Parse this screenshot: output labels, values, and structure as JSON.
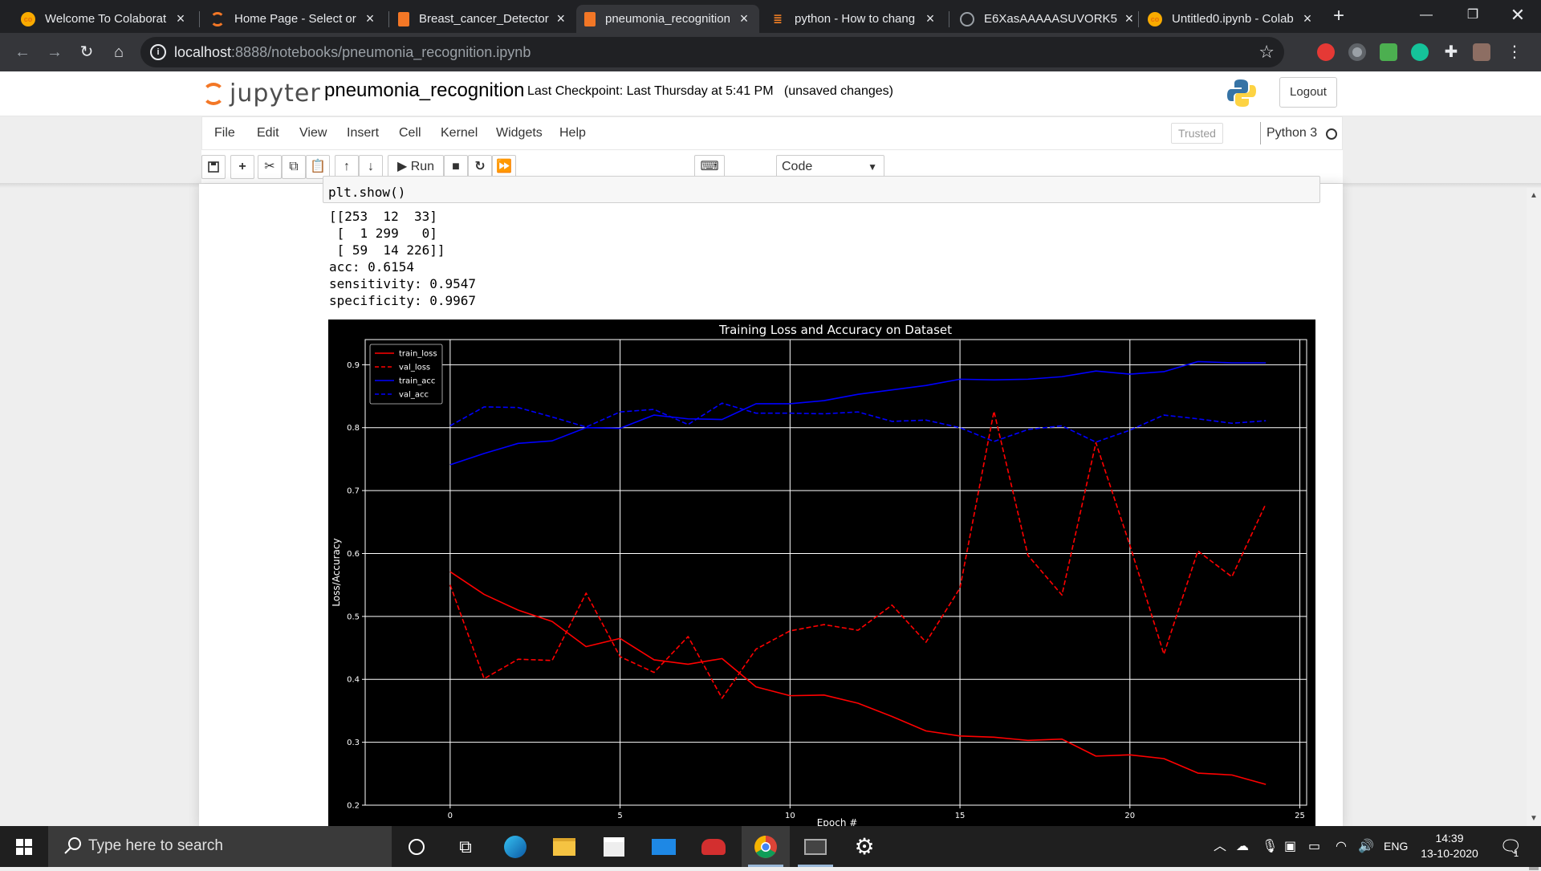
{
  "browser": {
    "tabs": [
      {
        "title": "Welcome To Colaborat",
        "icon": "colab-icon",
        "active": false
      },
      {
        "title": "Home Page - Select or",
        "icon": "jupyter-icon",
        "active": false
      },
      {
        "title": "Breast_cancer_Detector",
        "icon": "notebook-icon",
        "active": false
      },
      {
        "title": "pneumonia_recognition",
        "icon": "notebook-icon",
        "active": true
      },
      {
        "title": "python - How to chang",
        "icon": "stackoverflow-icon",
        "active": false
      },
      {
        "title": "E6XasAAAAASUVORK5",
        "icon": "globe-icon",
        "active": false
      },
      {
        "title": "Untitled0.ipynb - Colab",
        "icon": "colab-icon",
        "active": false
      }
    ],
    "url_host": "localhost",
    "url_rest": ":8888/notebooks/pneumonia_recognition.ipynb"
  },
  "jupyter": {
    "logo_text": "jupyter",
    "notebook_name": "pneumonia_recognition",
    "checkpoint": "Last Checkpoint: Last Thursday at 5:41 PM",
    "unsaved": "(unsaved changes)",
    "logout_label": "Logout",
    "menu": [
      "File",
      "Edit",
      "View",
      "Insert",
      "Cell",
      "Kernel",
      "Widgets",
      "Help"
    ],
    "trusted_label": "Trusted",
    "kernel_name": "Python 3",
    "run_label": "Run",
    "cell_type": "Code"
  },
  "cell": {
    "code_tail": "plt.show()",
    "output_text": "[[253  12  33]\n [  1 299   0]\n [ 59  14 226]]\nacc: 0.6154\nsensitivity: 0.9547\nspecificity: 0.9967"
  },
  "chart_data": {
    "type": "line",
    "title": "Training Loss and Accuracy on Dataset",
    "xlabel": "Epoch #",
    "ylabel": "Loss/Accuracy",
    "xlim": [
      -2.5,
      25.2
    ],
    "ylim": [
      0.2,
      0.94
    ],
    "xticks": [
      0,
      5,
      10,
      15,
      20,
      25
    ],
    "yticks": [
      0.2,
      0.3,
      0.4,
      0.5,
      0.6,
      0.7,
      0.8,
      0.9
    ],
    "grid": true,
    "legend_position": "upper-left",
    "background": "#000000",
    "x": [
      0,
      1,
      2,
      3,
      4,
      5,
      6,
      7,
      8,
      9,
      10,
      11,
      12,
      13,
      14,
      15,
      16,
      17,
      18,
      19,
      20,
      21,
      22,
      23,
      24
    ],
    "series": [
      {
        "name": "train_loss",
        "color": "#ff0000",
        "style": "solid",
        "values": [
          0.571,
          0.535,
          0.51,
          0.492,
          0.452,
          0.465,
          0.431,
          0.424,
          0.433,
          0.388,
          0.374,
          0.375,
          0.362,
          0.341,
          0.318,
          0.31,
          0.308,
          0.303,
          0.305,
          0.278,
          0.28,
          0.274,
          0.251,
          0.248,
          0.233
        ]
      },
      {
        "name": "val_loss",
        "color": "#ff0000",
        "style": "dashed",
        "values": [
          0.55,
          0.401,
          0.432,
          0.43,
          0.537,
          0.436,
          0.411,
          0.468,
          0.37,
          0.448,
          0.477,
          0.487,
          0.478,
          0.518,
          0.459,
          0.545,
          0.826,
          0.597,
          0.534,
          0.776,
          0.613,
          0.44,
          0.604,
          0.563,
          0.679
        ]
      },
      {
        "name": "train_acc",
        "color": "#0000ff",
        "style": "solid",
        "values": [
          0.741,
          0.759,
          0.775,
          0.779,
          0.8,
          0.799,
          0.82,
          0.814,
          0.813,
          0.838,
          0.838,
          0.843,
          0.853,
          0.86,
          0.867,
          0.877,
          0.876,
          0.877,
          0.881,
          0.89,
          0.885,
          0.889,
          0.905,
          0.903,
          0.903
        ]
      },
      {
        "name": "val_acc",
        "color": "#0000ff",
        "style": "dashed",
        "values": [
          0.803,
          0.833,
          0.832,
          0.817,
          0.801,
          0.825,
          0.829,
          0.805,
          0.839,
          0.823,
          0.823,
          0.822,
          0.825,
          0.81,
          0.812,
          0.8,
          0.778,
          0.797,
          0.803,
          0.777,
          0.796,
          0.82,
          0.814,
          0.807,
          0.811
        ]
      }
    ]
  },
  "taskbar": {
    "search_placeholder": "Type here to search",
    "language": "ENG",
    "time": "14:39",
    "date": "13-10-2020",
    "notification_count": "1"
  }
}
